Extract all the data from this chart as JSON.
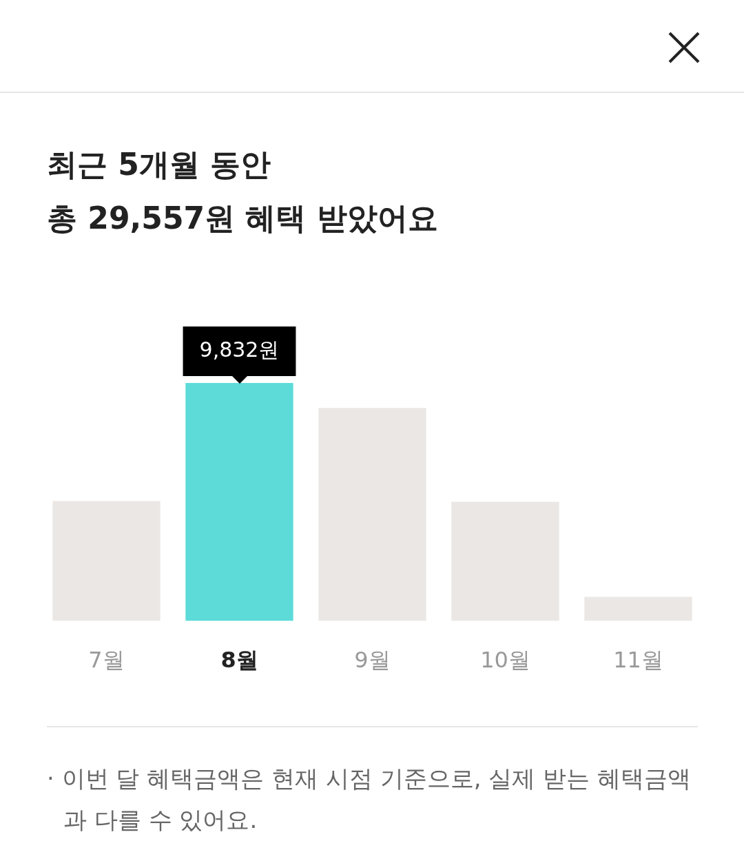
{
  "chart_data": {
    "type": "bar",
    "title": "최근 5개월 동안",
    "subtitle": "총 29,557원 혜택 받았어요",
    "categories": [
      "7월",
      "8월",
      "9월",
      "10월",
      "11월"
    ],
    "values": [
      4950,
      9832,
      8800,
      4920,
      1000
    ],
    "colors": [
      "#ebe7e4",
      "#5cdbd9",
      "#ebe7e4",
      "#ebe7e4",
      "#ebe7e4"
    ],
    "value_labels": [
      null,
      "9,832원",
      null,
      null,
      null
    ],
    "tick_labels": "x",
    "grid": false,
    "legend": false,
    "annotations": [
      "· 이번 달 혜택금액은 현재 시점 기준으로, 실제 받는 혜택금액과 다를 수 있어요."
    ]
  }
}
